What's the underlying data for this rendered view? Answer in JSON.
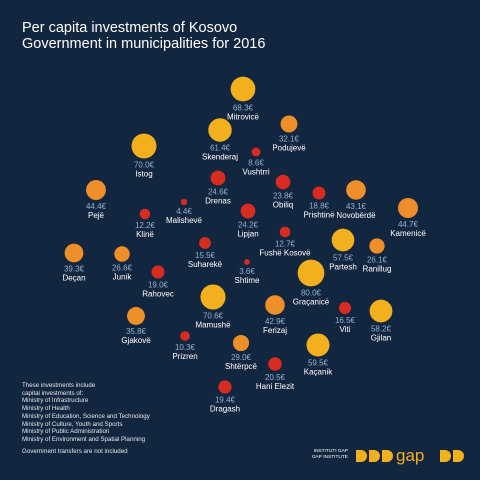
{
  "title": "Per capita investments of Kosovo Government in municipalities for 2016",
  "colors": {
    "background": "#13263f",
    "large": "#f2b01e",
    "medium": "#ee8f2a",
    "small": "#d82b22",
    "value_text": "#8fb3d4",
    "name_text": "#ffffff"
  },
  "chart_data": {
    "type": "bubble",
    "title": "Per capita investments of Kosovo Government in municipalities for 2016",
    "unit": "€",
    "points": [
      {
        "name": "Mitrovicë",
        "value": 68.3,
        "label": "68.3€"
      },
      {
        "name": "Podujevë",
        "value": 32.1,
        "label": "32.1€"
      },
      {
        "name": "Skenderaj",
        "value": 61.4,
        "label": "61.4€"
      },
      {
        "name": "Vushtrri",
        "value": 8.6,
        "label": "8.6€"
      },
      {
        "name": "Istog",
        "value": 70.0,
        "label": "70.0€"
      },
      {
        "name": "Drenas",
        "value": 24.6,
        "label": "24.6€"
      },
      {
        "name": "Obiliq",
        "value": 23.8,
        "label": "23.8€"
      },
      {
        "name": "Prishtinë",
        "value": 18.8,
        "label": "18.8€"
      },
      {
        "name": "Novobërdë",
        "value": 43.1,
        "label": "43.1€"
      },
      {
        "name": "Pejë",
        "value": 44.4,
        "label": "44.4€"
      },
      {
        "name": "Kamenicë",
        "value": 44.7,
        "label": "44.7€"
      },
      {
        "name": "Klinë",
        "value": 12.2,
        "label": "12.2€"
      },
      {
        "name": "Malishevë",
        "value": 4.4,
        "label": "4.4€"
      },
      {
        "name": "Lipjan",
        "value": 24.2,
        "label": "24.2€"
      },
      {
        "name": "Fushë Kosovë",
        "value": 12.7,
        "label": "12.7€"
      },
      {
        "name": "Partesh",
        "value": 57.5,
        "label": "57.5€"
      },
      {
        "name": "Ranillug",
        "value": 26.1,
        "label": "26.1€"
      },
      {
        "name": "Deçan",
        "value": 39.3,
        "label": "39.3€"
      },
      {
        "name": "Junik",
        "value": 26.6,
        "label": "26.6€"
      },
      {
        "name": "Suharekë",
        "value": 15.5,
        "label": "15.5€"
      },
      {
        "name": "Shtime",
        "value": 3.6,
        "label": "3.6€"
      },
      {
        "name": "Graçanicë",
        "value": 80.0,
        "label": "80.0€"
      },
      {
        "name": "Rahovec",
        "value": 19.0,
        "label": "19.0€"
      },
      {
        "name": "Mamushë",
        "value": 70.6,
        "label": "70.6€"
      },
      {
        "name": "Ferizaj",
        "value": 42.9,
        "label": "42.9€"
      },
      {
        "name": "Viti",
        "value": 16.5,
        "label": "16.5€"
      },
      {
        "name": "Gjilan",
        "value": 58.2,
        "label": "58.2€"
      },
      {
        "name": "Gjakovë",
        "value": 35.8,
        "label": "35.8€"
      },
      {
        "name": "Prizren",
        "value": 10.3,
        "label": "10.3€"
      },
      {
        "name": "Shtërpcë",
        "value": 29.0,
        "label": "29.0€"
      },
      {
        "name": "Kaçanik",
        "value": 59.5,
        "label": "59.5€"
      },
      {
        "name": "Hani Elezit",
        "value": 20.5,
        "label": "20.5€"
      },
      {
        "name": "Dragash",
        "value": 19.4,
        "label": "19.4€"
      }
    ]
  },
  "footnote": {
    "intro": [
      "These investments include",
      "capital investments of:"
    ],
    "ministries": [
      "Ministry of Infrastructure",
      "Ministry of Health",
      "Ministry of Education, Science and Technology",
      "Ministry of Culture, Youth and Sports",
      "Ministry of Public Administration",
      "Ministry of Environment and Spatial Planning"
    ],
    "note": "Government transfers are not included"
  },
  "brand": {
    "line1": "INSTITUTI GAP",
    "line2": "GAP INSTITUTE",
    "logo_text": "gap"
  }
}
